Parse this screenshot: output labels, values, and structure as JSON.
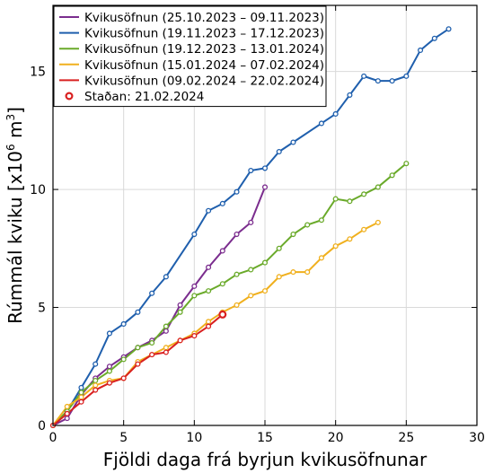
{
  "chart_data": {
    "type": "line",
    "title": "",
    "xlabel": "Fjöldi daga frá byrjun kvikusöfnunar",
    "ylabel_main": "Rúmmál kviku [x10",
    "ylabel_exp": "6",
    "ylabel_unit": " m",
    "ylabel_unit_exp": "3",
    "ylabel_close": "]",
    "xlim": [
      0,
      30
    ],
    "ylim": [
      0,
      17.8
    ],
    "xticks": [
      0,
      5,
      10,
      15,
      20,
      25,
      30
    ],
    "yticks": [
      0,
      5,
      10,
      15
    ],
    "grid": true,
    "legend_position": "top-left",
    "series": [
      {
        "name": "Kvikusöfnun (25.10.2023 – 09.11.2023)",
        "color": "#7b2d8e",
        "x": [
          0,
          1,
          2,
          3,
          4,
          5,
          6,
          7,
          8,
          9,
          10,
          11,
          12,
          13,
          14,
          15
        ],
        "y": [
          0,
          0.3,
          1.3,
          2.0,
          2.5,
          2.9,
          3.3,
          3.6,
          4.0,
          5.1,
          5.9,
          6.7,
          7.4,
          8.1,
          8.6,
          10.1
        ]
      },
      {
        "name": "Kvikusöfnun (19.11.2023 – 17.12.2023)",
        "color": "#1f5fad",
        "x": [
          0,
          1,
          2,
          3,
          4,
          5,
          6,
          7,
          8,
          10,
          11,
          12,
          13,
          14,
          15,
          16,
          17,
          19,
          20,
          21,
          22,
          23,
          24,
          25,
          26,
          27,
          28
        ],
        "y": [
          0,
          0.6,
          1.6,
          2.6,
          3.9,
          4.3,
          4.8,
          5.6,
          6.3,
          8.1,
          9.1,
          9.4,
          9.9,
          10.8,
          10.9,
          11.6,
          12.0,
          12.8,
          13.2,
          14.0,
          14.8,
          14.6,
          14.6,
          14.8,
          15.9,
          16.4,
          16.8
        ]
      },
      {
        "name": "Kvikusöfnun (19.12.2023 – 13.01.2024)",
        "color": "#6aaa2a",
        "x": [
          0,
          1,
          2,
          3,
          4,
          5,
          6,
          7,
          8,
          9,
          10,
          11,
          12,
          13,
          14,
          15,
          16,
          17,
          18,
          19,
          20,
          21,
          22,
          23,
          24,
          25
        ],
        "y": [
          0,
          0.6,
          1.4,
          1.9,
          2.3,
          2.8,
          3.3,
          3.5,
          4.2,
          4.8,
          5.5,
          5.7,
          6.0,
          6.4,
          6.6,
          6.9,
          7.5,
          8.1,
          8.5,
          8.7,
          9.6,
          9.5,
          9.8,
          10.1,
          10.6,
          11.1
        ]
      },
      {
        "name": "Kvikusöfnun (15.01.2024 – 07.02.2024)",
        "color": "#f0b01e",
        "x": [
          0,
          1,
          2,
          3,
          4,
          5,
          6,
          7,
          8,
          9,
          10,
          11,
          12,
          13,
          14,
          15,
          16,
          17,
          18,
          19,
          20,
          21,
          22,
          23
        ],
        "y": [
          0,
          0.8,
          1.2,
          1.7,
          1.9,
          2.0,
          2.7,
          3.0,
          3.3,
          3.6,
          3.9,
          4.4,
          4.8,
          5.1,
          5.5,
          5.7,
          6.3,
          6.5,
          6.5,
          7.1,
          7.6,
          7.9,
          8.3,
          8.6
        ]
      },
      {
        "name": "Kvikusöfnun (09.02.2024 – 22.02.2024)",
        "color": "#d92020",
        "x": [
          0,
          1,
          2,
          3,
          4,
          5,
          6,
          7,
          8,
          9,
          10,
          11,
          12
        ],
        "y": [
          0,
          0.5,
          1.0,
          1.5,
          1.8,
          2.0,
          2.6,
          3.0,
          3.1,
          3.6,
          3.8,
          4.2,
          4.7
        ]
      }
    ],
    "current_status": {
      "name": "Staðan: 21.02.2024",
      "color": "#d92020",
      "x": 12,
      "y": 4.7
    }
  }
}
